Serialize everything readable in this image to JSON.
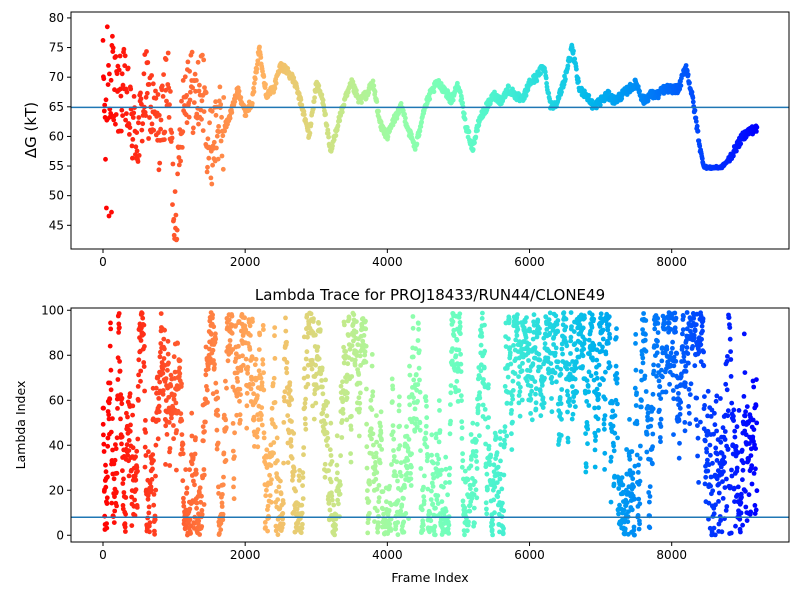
{
  "chart_data": [
    {
      "type": "scatter",
      "title": "",
      "xlabel": "",
      "ylabel": "ΔG (kT)",
      "xlim": [
        -450,
        9650
      ],
      "ylim": [
        41,
        81
      ],
      "xticks": [
        0,
        2000,
        4000,
        6000,
        8000
      ],
      "yticks": [
        45,
        50,
        55,
        60,
        65,
        70,
        75,
        80
      ],
      "hline": 64.9,
      "hline_color": "#1f77b4",
      "colormap": "rainbow (reversed: red at frame 0, violet at last frame)",
      "x_max": 9200,
      "trace_anchors": [
        [
          0,
          70
        ],
        [
          60,
          62
        ],
        [
          120,
          72
        ],
        [
          200,
          66
        ],
        [
          300,
          68
        ],
        [
          400,
          62
        ],
        [
          500,
          60
        ],
        [
          600,
          68
        ],
        [
          700,
          64
        ],
        [
          800,
          60
        ],
        [
          900,
          70
        ],
        [
          950,
          62
        ],
        [
          1000,
          47
        ],
        [
          1050,
          50
        ],
        [
          1100,
          64
        ],
        [
          1200,
          70
        ],
        [
          1300,
          66
        ],
        [
          1400,
          68
        ],
        [
          1500,
          57
        ],
        [
          1600,
          62
        ],
        [
          1700,
          61
        ],
        [
          1800,
          64
        ],
        [
          1900,
          68
        ],
        [
          2000,
          64
        ],
        [
          2100,
          66
        ],
        [
          2200,
          75
        ],
        [
          2300,
          67
        ],
        [
          2400,
          68
        ],
        [
          2500,
          72
        ],
        [
          2600,
          71
        ],
        [
          2700,
          69
        ],
        [
          2800,
          65
        ],
        [
          2900,
          60
        ],
        [
          3000,
          69
        ],
        [
          3100,
          66
        ],
        [
          3200,
          57
        ],
        [
          3300,
          62
        ],
        [
          3400,
          66
        ],
        [
          3500,
          69
        ],
        [
          3600,
          66
        ],
        [
          3700,
          67
        ],
        [
          3800,
          69
        ],
        [
          3900,
          62
        ],
        [
          4000,
          60
        ],
        [
          4100,
          63
        ],
        [
          4200,
          65
        ],
        [
          4300,
          61
        ],
        [
          4400,
          58
        ],
        [
          4500,
          64
        ],
        [
          4600,
          67
        ],
        [
          4700,
          69
        ],
        [
          4800,
          68
        ],
        [
          4900,
          66
        ],
        [
          5000,
          69
        ],
        [
          5100,
          62
        ],
        [
          5200,
          58
        ],
        [
          5300,
          63
        ],
        [
          5400,
          65
        ],
        [
          5500,
          67
        ],
        [
          5600,
          66
        ],
        [
          5700,
          68
        ],
        [
          5800,
          67
        ],
        [
          5900,
          66
        ],
        [
          6000,
          69
        ],
        [
          6100,
          70
        ],
        [
          6200,
          72
        ],
        [
          6300,
          65
        ],
        [
          6400,
          66
        ],
        [
          6500,
          70
        ],
        [
          6600,
          75
        ],
        [
          6700,
          68
        ],
        [
          6800,
          67
        ],
        [
          6900,
          65
        ],
        [
          7000,
          66
        ],
        [
          7100,
          67
        ],
        [
          7200,
          66
        ],
        [
          7300,
          67
        ],
        [
          7400,
          68
        ],
        [
          7500,
          69
        ],
        [
          7600,
          66
        ],
        [
          7700,
          67
        ],
        [
          7800,
          67
        ],
        [
          7900,
          68
        ],
        [
          8000,
          68
        ],
        [
          8100,
          68
        ],
        [
          8200,
          72
        ],
        [
          8300,
          66
        ],
        [
          8400,
          58
        ],
        [
          8450,
          55
        ],
        [
          8500,
          54.7
        ],
        [
          8700,
          54.8
        ],
        [
          8800,
          56
        ],
        [
          8900,
          58
        ],
        [
          9000,
          60
        ],
        [
          9100,
          61
        ],
        [
          9200,
          61.2
        ]
      ]
    },
    {
      "type": "scatter",
      "title": "Lambda Trace for PROJ18433/RUN44/CLONE49",
      "xlabel": "Frame Index",
      "ylabel": "Lambda Index",
      "xlim": [
        -450,
        9650
      ],
      "ylim": [
        -3,
        101
      ],
      "xticks": [
        0,
        2000,
        4000,
        6000,
        8000
      ],
      "yticks": [
        0,
        20,
        40,
        60,
        80,
        100
      ],
      "hline": 8,
      "hline_color": "#1f77b4",
      "colormap": "rainbow (reversed: red at frame 0, violet at last frame)",
      "x_max": 9200,
      "y_range": [
        0,
        99
      ]
    }
  ]
}
